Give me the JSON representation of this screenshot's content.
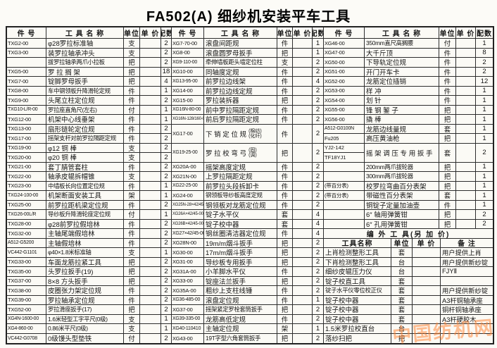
{
  "title": "FA502(A) 细纱机安装平车工具",
  "columns": {
    "part": "件  号",
    "name": "工 具 名 称",
    "unit": "单位",
    "price": "单 价",
    "qty": "配数"
  },
  "groups": [
    {
      "rows": [
        {
          "part": "TXG2-00",
          "name": "φ28罗拉标准轴",
          "unit": "支",
          "price": "",
          "qty": "2"
        },
        {
          "part": "TXG3-00",
          "name": "装罗拉轴承冲头",
          "unit": "支",
          "price": "",
          "qty": "2"
        },
        {
          "part": "",
          "name": "拔罗拉轴承两爪小拉板",
          "unit": "把",
          "price": "",
          "qty": "2"
        },
        {
          "part": "TXG5-00",
          "name": "罗 拉 搁 架",
          "unit": "把",
          "price": "",
          "qty": "18"
        },
        {
          "part": "TXG7-00",
          "name": "锭脚罗母扳手",
          "unit": "把",
          "price": "",
          "qty": "4"
        },
        {
          "part": "TXG8-00",
          "name": "车中钢领板升降滑轮定规",
          "unit": "件",
          "price": "",
          "qty": "1"
        },
        {
          "part": "TXG9-00",
          "name": "头尾立柱定位规",
          "unit": "件",
          "price": "",
          "qty": "2"
        },
        {
          "part": "TXG10-L/R-00",
          "name": "罗拉座直角尺(左右)",
          "unit": "付",
          "price": "",
          "qty": "1"
        },
        {
          "part": "TXG12-00",
          "name": "机架中心线垂架",
          "unit": "件",
          "price": "",
          "qty": "1"
        },
        {
          "part": "TXG13-00",
          "name": "扇形链轮定位规",
          "unit": "件",
          "price": "",
          "qty": "2"
        },
        {
          "part": "TXG17-00",
          "name": "摇架支杆对前罗拉隔距定规",
          "unit": "件",
          "price": "",
          "qty": "2"
        },
        {
          "part": "TXG19-00",
          "name": "φ12  铜  棒",
          "unit": "支",
          "price": "",
          "qty": "2"
        },
        {
          "part": "TXG20-00",
          "name": "φ20  铜  棒",
          "unit": "支",
          "price": "",
          "qty": "2"
        },
        {
          "part": "TXG21-00",
          "name": "套丁腈管套柱",
          "unit": "件",
          "price": "",
          "qty": "2"
        },
        {
          "part": "TXG22-00",
          "name": "轴承皮辊拆帽锥",
          "unit": "支",
          "price": "",
          "qty": "2"
        },
        {
          "part": "TXG23-00",
          "name": "中墙板长向位置定位规",
          "unit": "件",
          "price": "",
          "qty": "1"
        },
        {
          "part": "TXG24-100-00",
          "name": "机架断面安装工具",
          "unit": "架",
          "price": "",
          "qty": "1"
        },
        {
          "part": "TXG25-00",
          "name": "前罗拉距机梁定位规",
          "unit": "件",
          "price": "",
          "qty": "2"
        },
        {
          "part": "TXG26-00L/R",
          "name": "导纱板升降滑轮座定位规",
          "unit": "付",
          "price": "",
          "qty": "1"
        },
        {
          "part": "TXG28-00",
          "name": "φ28前罗拉假培林",
          "unit": "件",
          "price": "",
          "qty": "2"
        },
        {
          "part": "TXG32-00",
          "name": "主轴尾端假培林",
          "unit": "件",
          "price": "",
          "qty": "2"
        },
        {
          "part": "A512-G5200",
          "name": "主轴假培林",
          "unit": "件",
          "price": "",
          "qty": "2"
        },
        {
          "part": "VC442-G1101",
          "name": "φ40×1.8米标准轴",
          "unit": "支",
          "price": "",
          "qty": "1"
        },
        {
          "part": "TXG33-00",
          "name": "车面龙筋拉紧工具",
          "unit": "把",
          "price": "",
          "qty": "2"
        },
        {
          "part": "TXG35-00",
          "name": "头罗拉扳手(19)",
          "unit": "把",
          "price": "",
          "qty": "2"
        },
        {
          "part": "TXG37-00",
          "name": "8×8 方头扳手",
          "unit": "把",
          "price": "",
          "qty": "2"
        },
        {
          "part": "TXG38-00",
          "name": "皮圈张力架定位规",
          "unit": "件",
          "price": "",
          "qty": "2"
        },
        {
          "part": "TXG39-00",
          "name": "罗拉轴承定位规",
          "unit": "件",
          "price": "",
          "qty": "2"
        },
        {
          "part": "TXG52-00",
          "name": "罗拉滑座扳手(17)",
          "unit": "把",
          "price": "",
          "qty": "2"
        },
        {
          "part": "XG4N-1600-00",
          "name": "1.6米轻型工字平尺(0级)",
          "unit": "支",
          "price": "",
          "qty": "1"
        },
        {
          "part": "XG4-860-00",
          "name": "0.86米平尺(0级)",
          "unit": "支",
          "price": "",
          "qty": "1"
        },
        {
          "part": "VC442-G0708",
          "name": "0级馒头型垫铁",
          "unit": "付",
          "price": "",
          "qty": "2"
        }
      ]
    },
    {
      "rows": [
        {
          "part": "XG7-70-00",
          "name": "滚盘间距规",
          "unit": "件",
          "price": "",
          "qty": "1"
        },
        {
          "part": "XG8-00",
          "name": "滚盘圆罗母扳手",
          "unit": "把",
          "price": "",
          "qty": "1"
        },
        {
          "part": "XG9-110-00",
          "name": "牵伸墙板距头墙定位柱",
          "unit": "支",
          "price": "",
          "qty": "2"
        },
        {
          "part": "XG10-00",
          "name": "同轴度定规",
          "unit": "件",
          "price": "",
          "qty": "2"
        },
        {
          "part": "XG13-95-00",
          "name": "前罗拉边线架",
          "unit": "件",
          "price": "",
          "qty": "4"
        },
        {
          "part": "XG14-00",
          "name": "前罗拉边线定规",
          "unit": "件",
          "price": "",
          "qty": "2"
        },
        {
          "part": "XG15-00",
          "name": "罗拉装拆器",
          "unit": "把",
          "price": "",
          "qty": "2"
        },
        {
          "part": "XG16N-80-00",
          "name": "前中罗拉隔距定规",
          "unit": "件",
          "price": "",
          "qty": "2"
        },
        {
          "part": "XG16N-128/160-00",
          "name": "前后罗拉隔距定规",
          "unit": "件",
          "price": "",
          "qty": "2"
        },
        {
          "part": "XG17-00",
          "name": "下 销 定 位 规",
          "note": [
            "(棉纺)",
            "(化纤)"
          ],
          "unit": "件",
          "price": "",
          "qty": "2",
          "span": 2
        },
        {
          "part": "XG19-25-00",
          "name": "罗 拉 校 弯 弓",
          "note": [
            "(固)",
            "(调)"
          ],
          "unit": "把",
          "price": "",
          "qty": "2",
          "span": 2
        },
        {
          "part": "XG20A-00",
          "name": "摇架高度定规",
          "unit": "件",
          "price": "",
          "qty": "2"
        },
        {
          "part": "XG21N-00",
          "name": "上罗拉隔距定规",
          "unit": "件",
          "price": "",
          "qty": "2"
        },
        {
          "part": "XG22-25-00",
          "name": "前罗拉头段拆卸卡",
          "unit": "件",
          "price": "",
          "qty": "2"
        },
        {
          "part": "XG24-00",
          "name": "钢领板导纱板高度定规",
          "unit": "件",
          "price": "",
          "qty": "2"
        },
        {
          "part": "XG25N-28×42/45-00",
          "name": "钢领板对龙筋定位规",
          "unit": "件",
          "price": "",
          "qty": "2"
        },
        {
          "part": "XG26A×42/45-00",
          "name": "锭子水平仪",
          "unit": "套",
          "price": "",
          "qty": "4"
        },
        {
          "part": "XG26B×42/45-00",
          "name": "锭子校中器",
          "unit": "套",
          "price": "",
          "qty": "4"
        },
        {
          "part": "XG27×42/45-00",
          "name": "钢丝圈清洁器定位规",
          "unit": "件",
          "price": "",
          "qty": "4"
        },
        {
          "part": "XG28N-00",
          "name": "19m/m烟斗扳手",
          "unit": "把",
          "price": "",
          "qty": "2"
        },
        {
          "part": "XG30-00",
          "name": "17m/m烟斗扳手",
          "unit": "把",
          "price": "",
          "qty": "2"
        },
        {
          "part": "XG31-00",
          "name": "导纱板专用扳手",
          "unit": "把",
          "price": "",
          "qty": "2"
        },
        {
          "part": "XG31A-00",
          "name": "小羊脚水平仪",
          "unit": "件",
          "price": "",
          "qty": "2"
        },
        {
          "part": "XG33-00",
          "name": "锭座法兰扳手",
          "unit": "把",
          "price": "",
          "qty": "2"
        },
        {
          "part": "XG35A-00",
          "name": "粗纱上支柱线锤",
          "unit": "件",
          "price": "",
          "qty": "2"
        },
        {
          "part": "XG36-485-00",
          "name": "滚盘定位规",
          "unit": "件",
          "price": "",
          "qty": "1"
        },
        {
          "part": "XG37-00",
          "name": "摇架紧定罗栓套筒扳手",
          "unit": "把",
          "price": "",
          "qty": "2"
        },
        {
          "part": "XG39-335-00",
          "name": "龙筋高低定规",
          "unit": "件",
          "price": "",
          "qty": "2"
        },
        {
          "part": "XG40-110410",
          "name": "主轴定位规",
          "unit": "架",
          "price": "",
          "qty": "1"
        },
        {
          "part": "XG43-00",
          "name": "19T字型六角套筒扳手",
          "unit": "把",
          "price": "",
          "qty": "2"
        }
      ]
    },
    {
      "rows": [
        {
          "part": "XG46-00",
          "name": "350mm直尺高搁腰",
          "unit": "付",
          "price": "",
          "qty": "1"
        },
        {
          "part": "XG47-00",
          "name": "大千斤顶",
          "unit": "件",
          "price": "",
          "qty": "8"
        },
        {
          "part": "XG50-00",
          "name": "下导轨定位规",
          "unit": "件",
          "price": "",
          "qty": "2"
        },
        {
          "part": "XG51-00",
          "name": "开门开车卡",
          "unit": "件",
          "price": "",
          "qty": "2"
        },
        {
          "part": "XG52-00",
          "name": "龙筋定位插销",
          "unit": "件",
          "price": "",
          "qty": "12"
        },
        {
          "part": "XG53-00",
          "name": "样 冲",
          "unit": "件",
          "price": "",
          "qty": "1"
        },
        {
          "part": "XG54-00",
          "name": "划 针",
          "unit": "件",
          "price": "",
          "qty": "1"
        },
        {
          "part": "XG55-00",
          "name": "锋 钢 錾 子",
          "unit": "把",
          "price": "",
          "qty": "1"
        },
        {
          "part": "XG56-00",
          "name": "撬  棒",
          "unit": "把",
          "price": "",
          "qty": "1"
        },
        {
          "part": "A512-G0100N",
          "name": "龙筋边线量规",
          "unit": "套",
          "price": "",
          "qty": "1"
        },
        {
          "part": "Fu205",
          "name": "高压黄油枪",
          "unit": "把",
          "price": "",
          "qty": "1"
        },
        {
          "part_split": [
            "YJ2-142",
            "TF18YJ1"
          ],
          "name": "摇 架 调 压 专 用 扳 手",
          "unit": "套",
          "price": "",
          "qty": "2",
          "span": 2
        },
        {
          "part": "",
          "name": "200mm两爪拔轮器",
          "unit": "把",
          "price": "",
          "qty": "1"
        },
        {
          "part": "",
          "name": "300mm两爪拔轮器",
          "unit": "把",
          "price": "",
          "qty": "1"
        },
        {
          "part": "(带百分表)",
          "name": "校罗拉弯曲百分表架",
          "unit": "把",
          "price": "",
          "qty": "1"
        },
        {
          "part": "(带百分表)",
          "name": "带磁性百分表架",
          "unit": "套",
          "price": "",
          "qty": "1"
        },
        {
          "part": "",
          "name": "铜锭子定量加油壶",
          "unit": "件",
          "price": "",
          "qty": "1"
        },
        {
          "part": "",
          "name": "6″ 轴用弹簧钳",
          "unit": "把",
          "price": "",
          "qty": "2"
        },
        {
          "part": "",
          "name": "6″ 孔用弹簧钳",
          "unit": "把",
          "price": "",
          "qty": "2"
        }
      ],
      "extra": {
        "header": "编 外 工 具(另 加 价)",
        "columns": [
          "工具名称",
          "单位",
          "单 价",
          "备 注"
        ],
        "rows": [
          [
            "上肖检测整形工具",
            "套",
            "",
            "用户提供上肖"
          ],
          [
            "下肖检测整形工具",
            "台",
            "",
            "用户提供新纱锭"
          ],
          [
            "细纱皮辊压力仪",
            "台",
            "",
            "FJYⅡ"
          ],
          [
            "锭子校直工具",
            "套",
            "",
            ""
          ],
          [
            "锭子水平仪零位校正仪",
            "套",
            "",
            "用户提供新纱锭"
          ],
          [
            "锭子校中器",
            "套",
            "",
            "A3杆铜轴承座"
          ],
          [
            "锭子校中器",
            "套",
            "",
            "铜杆铜轴承座"
          ],
          [
            "锭子校中器",
            "套",
            "",
            "A3杆硬胶木"
          ],
          [
            "1.5米罗拉校直台",
            "台",
            "",
            ""
          ],
          [
            "落纱扫把",
            "把",
            "",
            ""
          ]
        ]
      }
    }
  ],
  "watermark": "中国纺机网"
}
